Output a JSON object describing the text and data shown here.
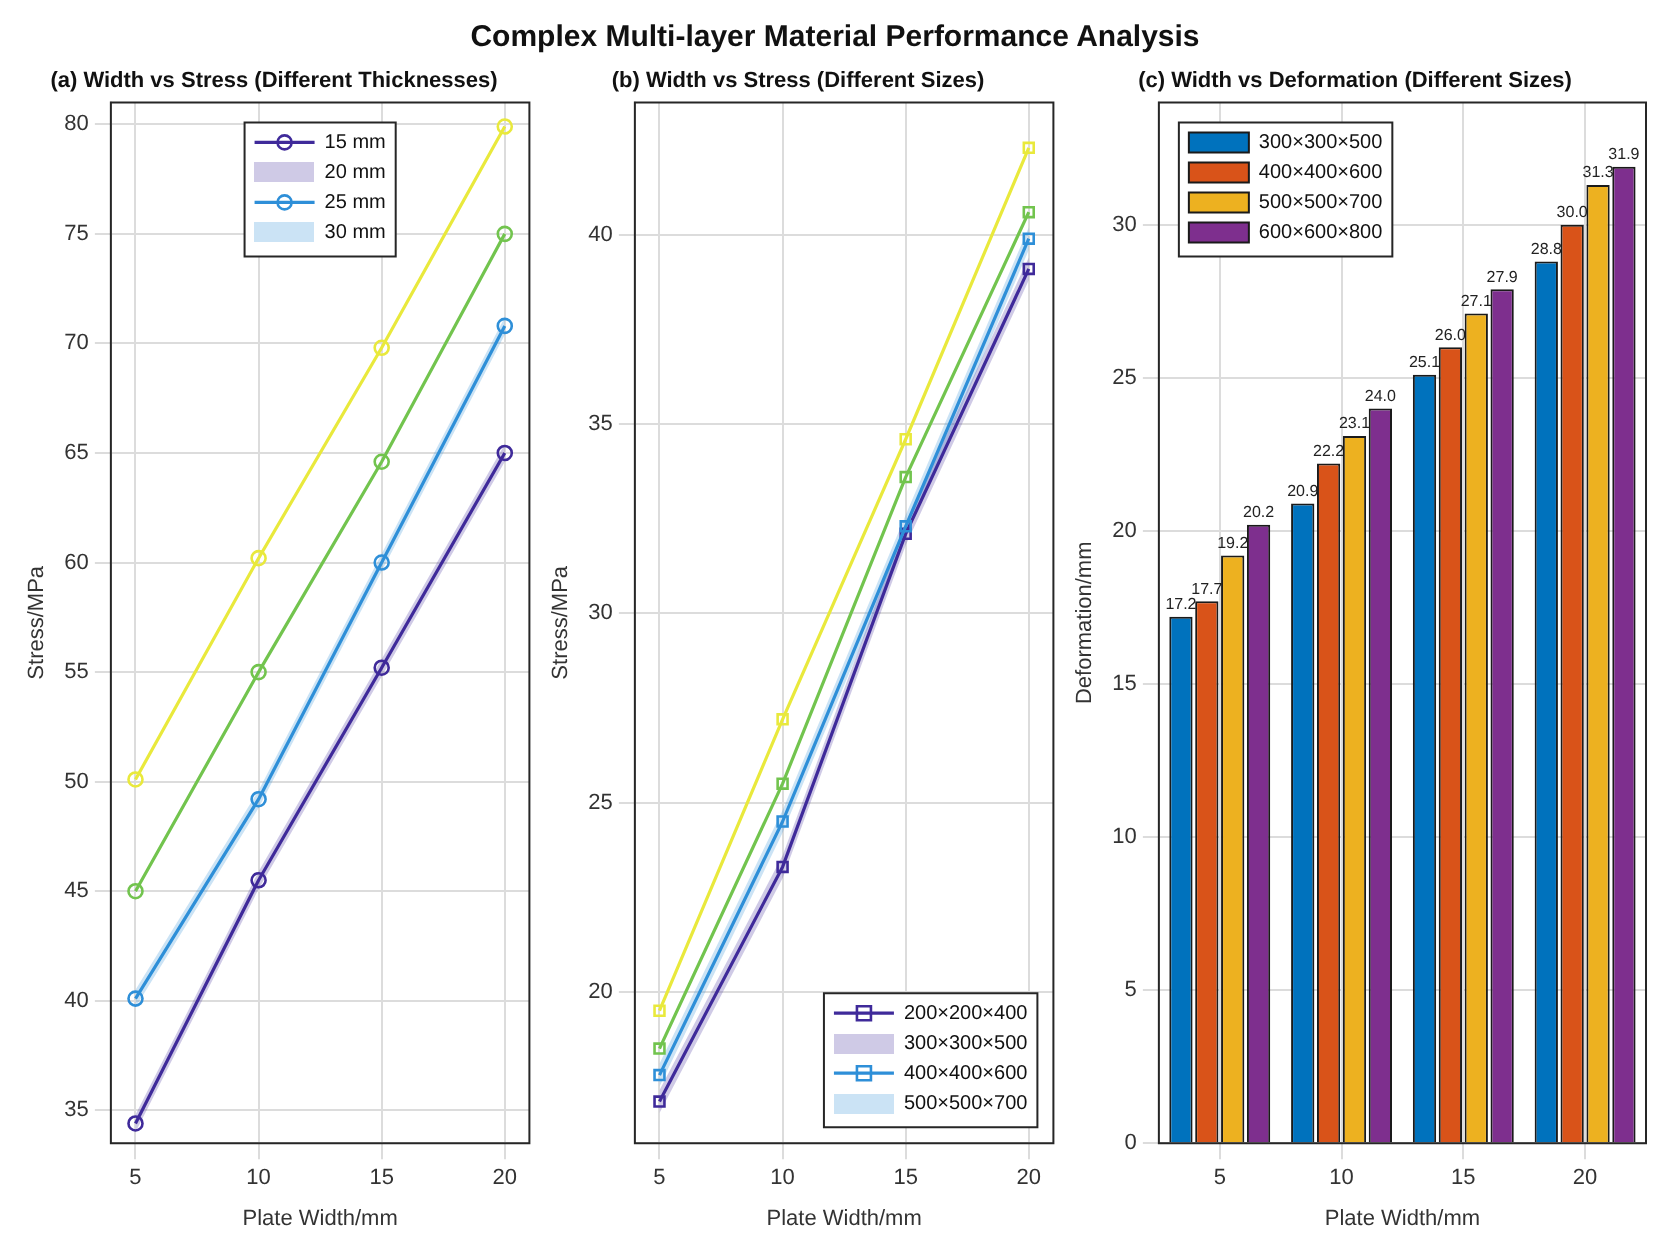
{
  "chart_data": [
    {
      "type": "line",
      "title": "(a) Width vs Stress (Different Thicknesses)",
      "annotations": [
        "Complex Multi-layer Material Performance Analysis",
        "20 mm",
        "30 mm"
      ],
      "xlabel": "Plate Width/mm",
      "ylabel": "Stress/MPa",
      "x": [
        5,
        10,
        15,
        20
      ],
      "xlim": [
        4,
        21
      ],
      "xticks": [
        5,
        10,
        15,
        20
      ],
      "ylim": [
        33.5,
        81
      ],
      "yticks": [
        35,
        40,
        45,
        50,
        55,
        60,
        65,
        70,
        75,
        80
      ],
      "grid": true,
      "legend": "top",
      "marker": "circle",
      "line_style": "solid",
      "series": [
        {
          "name": "15 mm",
          "color": "#3f2a9a",
          "values": [
            34.4,
            45.5,
            55.2,
            65.0
          ],
          "lower": [
            34.0,
            45.1,
            54.8,
            64.6
          ],
          "upper": [
            34.8,
            45.9,
            55.6,
            65.4
          ]
        },
        {
          "name": "25 mm",
          "color": "#2e8fd8",
          "values": [
            40.1,
            49.2,
            60.0,
            70.8
          ],
          "lower": [
            39.7,
            48.8,
            59.6,
            70.4
          ],
          "upper": [
            40.5,
            49.6,
            60.4,
            71.2
          ]
        },
        {
          "color": "#72c44e",
          "values": [
            45.0,
            55.0,
            64.6,
            75.0
          ]
        },
        {
          "color": "#e9e93c",
          "values": [
            50.1,
            60.2,
            69.8,
            79.9
          ]
        }
      ]
    },
    {
      "type": "line",
      "title": "(b) Width vs Stress (Different Sizes)",
      "annotations": [
        "300×300×500",
        "500×500×700"
      ],
      "xlabel": "Plate Width/mm",
      "ylabel": "Stress/MPa",
      "x": [
        5,
        10,
        15,
        20
      ],
      "xlim": [
        4,
        21
      ],
      "xticks": [
        5,
        10,
        15,
        20
      ],
      "ylim": [
        16,
        43.5
      ],
      "yticks": [
        20,
        25,
        30,
        35,
        40
      ],
      "grid": true,
      "legend": "bottom right",
      "marker": "square",
      "line_style": "solid",
      "series": [
        {
          "name": "200×200×400",
          "color": "#3f2a9a",
          "values": [
            17.1,
            23.3,
            32.1,
            39.1
          ],
          "lower": [
            16.8,
            23.0,
            31.8,
            38.8
          ],
          "upper": [
            17.4,
            23.6,
            32.4,
            39.4
          ]
        },
        {
          "name": "400×400×600",
          "color": "#2e8fd8",
          "values": [
            17.8,
            24.5,
            32.3,
            39.9
          ],
          "lower": [
            17.5,
            24.2,
            32.0,
            39.6
          ],
          "upper": [
            18.1,
            24.8,
            32.6,
            40.2
          ]
        },
        {
          "color": "#72c44e",
          "values": [
            18.5,
            25.5,
            33.6,
            40.6
          ]
        },
        {
          "color": "#e9e93c",
          "values": [
            19.5,
            27.2,
            34.6,
            42.3
          ]
        }
      ]
    },
    {
      "type": "bar",
      "title": "(c) Width vs Deformation (Different Sizes)",
      "xlabel": "Plate Width/mm",
      "ylabel": "Deformation/mm",
      "categories": [
        "5",
        "10",
        "15",
        "20"
      ],
      "ylim": [
        0,
        34
      ],
      "yticks": [
        0,
        5,
        10,
        15,
        20,
        25,
        30
      ],
      "grid": true,
      "legend": "top left",
      "series": [
        {
          "name": "300×300×500",
          "color": "#0072bd",
          "values": [
            17.2,
            20.9,
            25.1,
            28.8
          ],
          "value_labels": [
            "17.2",
            "20.9",
            "25.1",
            "28.8"
          ]
        },
        {
          "name": "400×400×600",
          "color": "#d95319",
          "values": [
            17.7,
            22.2,
            26.0,
            30.0
          ],
          "value_labels": [
            "17.7",
            "22.2",
            "26.0",
            "30.0"
          ]
        },
        {
          "name": "500×500×700",
          "color": "#edb120",
          "values": [
            19.2,
            23.1,
            27.1,
            31.3
          ],
          "value_labels": [
            "19.2",
            "23.1",
            "27.1",
            "31.3"
          ]
        },
        {
          "name": "600×600×800",
          "color": "#7e2f8e",
          "values": [
            20.2,
            24.0,
            27.9,
            31.9
          ],
          "value_labels": [
            "20.2",
            "24.0",
            "27.9",
            "31.9"
          ]
        }
      ]
    }
  ]
}
